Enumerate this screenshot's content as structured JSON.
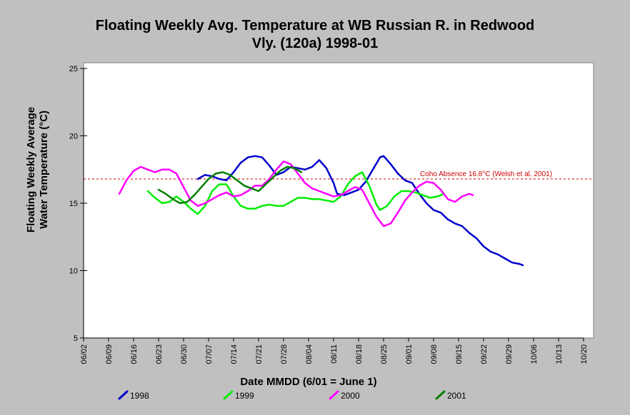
{
  "chart_data": {
    "type": "line",
    "title_line1": "Floating Weekly Avg. Temperature at WB Russian R. in Redwood",
    "title_line2": "Vly. (120a) 1998-01",
    "xlabel": "Date MMDD (6/01 = June 1)",
    "ylabel_line1": "Floating Weekly Average",
    "ylabel_line2": "Water Temperature (°C)",
    "x_ticks": [
      "06/02",
      "06/09",
      "06/16",
      "06/23",
      "06/30",
      "07/07",
      "07/14",
      "07/21",
      "07/28",
      "08/04",
      "08/11",
      "08/18",
      "08/25",
      "09/01",
      "09/08",
      "09/15",
      "09/22",
      "09/29",
      "10/06",
      "10/13",
      "10/20"
    ],
    "x_range_days": [
      0,
      140
    ],
    "y_ticks": [
      5,
      10,
      15,
      20,
      25
    ],
    "ylim": [
      5,
      25
    ],
    "grid": false,
    "legend_position": "bottom",
    "reference_line": {
      "value": 16.8,
      "label": "Coho Absence 16.8°C (Welsh et al. 2001)",
      "color": "#cc0000"
    },
    "series": [
      {
        "name": "1998",
        "color": "#0000cc",
        "points": [
          [
            32,
            16.8
          ],
          [
            34,
            17.1
          ],
          [
            36,
            17.0
          ],
          [
            38,
            16.8
          ],
          [
            40,
            16.7
          ],
          [
            42,
            17.3
          ],
          [
            44,
            18.0
          ],
          [
            46,
            18.4
          ],
          [
            48,
            18.5
          ],
          [
            50,
            18.4
          ],
          [
            52,
            17.8
          ],
          [
            54,
            17.1
          ],
          [
            56,
            17.3
          ],
          [
            58,
            17.7
          ],
          [
            60,
            17.6
          ],
          [
            62,
            17.5
          ],
          [
            64,
            17.7
          ],
          [
            66,
            18.2
          ],
          [
            68,
            17.6
          ],
          [
            70,
            16.5
          ],
          [
            71,
            15.7
          ],
          [
            73,
            15.6
          ],
          [
            75,
            15.8
          ],
          [
            77,
            16.0
          ],
          [
            79,
            16.6
          ],
          [
            81,
            17.5
          ],
          [
            83,
            18.4
          ],
          [
            84,
            18.5
          ],
          [
            86,
            17.9
          ],
          [
            88,
            17.2
          ],
          [
            90,
            16.7
          ],
          [
            92,
            16.5
          ],
          [
            94,
            15.7
          ],
          [
            96,
            15.0
          ],
          [
            98,
            14.5
          ],
          [
            100,
            14.3
          ],
          [
            102,
            13.8
          ],
          [
            104,
            13.5
          ],
          [
            106,
            13.3
          ],
          [
            108,
            12.8
          ],
          [
            110,
            12.4
          ],
          [
            112,
            11.8
          ],
          [
            114,
            11.4
          ],
          [
            116,
            11.2
          ],
          [
            118,
            10.9
          ],
          [
            120,
            10.6
          ],
          [
            122,
            10.5
          ],
          [
            123,
            10.4
          ]
        ]
      },
      {
        "name": "1999",
        "color": "#00ee00",
        "points": [
          [
            18,
            15.9
          ],
          [
            20,
            15.4
          ],
          [
            22,
            15.0
          ],
          [
            24,
            15.1
          ],
          [
            26,
            15.5
          ],
          [
            28,
            15.1
          ],
          [
            30,
            14.6
          ],
          [
            32,
            14.2
          ],
          [
            34,
            14.8
          ],
          [
            36,
            15.9
          ],
          [
            38,
            16.4
          ],
          [
            40,
            16.4
          ],
          [
            42,
            15.5
          ],
          [
            44,
            14.8
          ],
          [
            46,
            14.6
          ],
          [
            48,
            14.6
          ],
          [
            50,
            14.8
          ],
          [
            52,
            14.9
          ],
          [
            54,
            14.8
          ],
          [
            56,
            14.8
          ],
          [
            58,
            15.1
          ],
          [
            60,
            15.4
          ],
          [
            62,
            15.4
          ],
          [
            64,
            15.3
          ],
          [
            66,
            15.3
          ],
          [
            68,
            15.2
          ],
          [
            70,
            15.1
          ],
          [
            72,
            15.5
          ],
          [
            74,
            16.4
          ],
          [
            76,
            17.0
          ],
          [
            78,
            17.3
          ],
          [
            80,
            16.3
          ],
          [
            82,
            14.9
          ],
          [
            83,
            14.5
          ],
          [
            85,
            14.8
          ],
          [
            87,
            15.5
          ],
          [
            89,
            15.9
          ],
          [
            91,
            15.9
          ],
          [
            93,
            15.8
          ],
          [
            95,
            15.6
          ],
          [
            97,
            15.4
          ],
          [
            99,
            15.5
          ],
          [
            101,
            15.7
          ]
        ]
      },
      {
        "name": "2000",
        "color": "#ff00ff",
        "points": [
          [
            10,
            15.7
          ],
          [
            12,
            16.7
          ],
          [
            14,
            17.4
          ],
          [
            16,
            17.7
          ],
          [
            18,
            17.5
          ],
          [
            20,
            17.3
          ],
          [
            22,
            17.5
          ],
          [
            24,
            17.5
          ],
          [
            26,
            17.2
          ],
          [
            28,
            16.2
          ],
          [
            30,
            15.2
          ],
          [
            32,
            14.8
          ],
          [
            34,
            15.0
          ],
          [
            36,
            15.3
          ],
          [
            38,
            15.6
          ],
          [
            40,
            15.8
          ],
          [
            42,
            15.5
          ],
          [
            44,
            15.6
          ],
          [
            46,
            15.9
          ],
          [
            48,
            16.3
          ],
          [
            50,
            16.3
          ],
          [
            52,
            16.8
          ],
          [
            54,
            17.5
          ],
          [
            56,
            18.1
          ],
          [
            58,
            17.9
          ],
          [
            60,
            17.2
          ],
          [
            62,
            16.5
          ],
          [
            64,
            16.1
          ],
          [
            66,
            15.9
          ],
          [
            68,
            15.7
          ],
          [
            70,
            15.5
          ],
          [
            72,
            15.6
          ],
          [
            74,
            15.9
          ],
          [
            76,
            16.2
          ],
          [
            78,
            16.0
          ],
          [
            80,
            15.0
          ],
          [
            82,
            14.0
          ],
          [
            84,
            13.3
          ],
          [
            86,
            13.5
          ],
          [
            88,
            14.3
          ],
          [
            90,
            15.2
          ],
          [
            92,
            15.8
          ],
          [
            94,
            16.3
          ],
          [
            96,
            16.6
          ],
          [
            98,
            16.5
          ],
          [
            100,
            16.0
          ],
          [
            102,
            15.3
          ],
          [
            104,
            15.1
          ],
          [
            106,
            15.5
          ],
          [
            108,
            15.7
          ],
          [
            109,
            15.6
          ]
        ]
      },
      {
        "name": "2001",
        "color": "#008000",
        "points": [
          [
            21,
            16.0
          ],
          [
            23,
            15.7
          ],
          [
            25,
            15.3
          ],
          [
            27,
            15.0
          ],
          [
            29,
            15.1
          ],
          [
            31,
            15.6
          ],
          [
            33,
            16.2
          ],
          [
            35,
            16.8
          ],
          [
            37,
            17.2
          ],
          [
            39,
            17.3
          ],
          [
            41,
            17.1
          ],
          [
            43,
            16.7
          ],
          [
            45,
            16.3
          ],
          [
            47,
            16.1
          ],
          [
            49,
            15.9
          ],
          [
            51,
            16.4
          ],
          [
            53,
            16.9
          ],
          [
            55,
            17.4
          ],
          [
            57,
            17.7
          ],
          [
            59,
            17.6
          ],
          [
            61,
            17.3
          ]
        ]
      }
    ]
  }
}
